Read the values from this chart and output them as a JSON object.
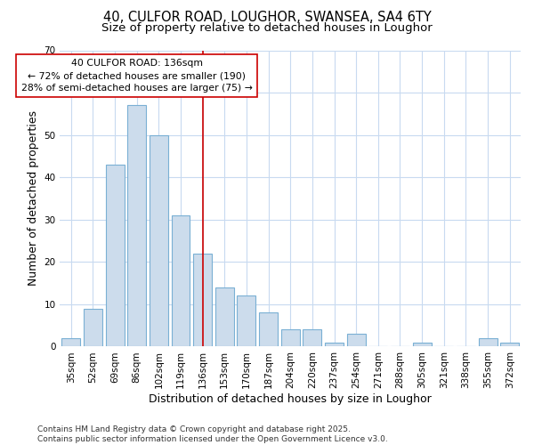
{
  "title_line1": "40, CULFOR ROAD, LOUGHOR, SWANSEA, SA4 6TY",
  "title_line2": "Size of property relative to detached houses in Loughor",
  "xlabel": "Distribution of detached houses by size in Loughor",
  "ylabel": "Number of detached properties",
  "categories": [
    "35sqm",
    "52sqm",
    "69sqm",
    "86sqm",
    "102sqm",
    "119sqm",
    "136sqm",
    "153sqm",
    "170sqm",
    "187sqm",
    "204sqm",
    "220sqm",
    "237sqm",
    "254sqm",
    "271sqm",
    "288sqm",
    "305sqm",
    "321sqm",
    "338sqm",
    "355sqm",
    "372sqm"
  ],
  "values": [
    2,
    9,
    43,
    57,
    50,
    31,
    22,
    14,
    12,
    8,
    4,
    4,
    1,
    3,
    0,
    0,
    1,
    0,
    0,
    2,
    1
  ],
  "bar_color": "#ccdcec",
  "bar_edge_color": "#7ab0d4",
  "highlight_index": 6,
  "highlight_line_color": "#cc0000",
  "annotation_line1": "40 CULFOR ROAD: 136sqm",
  "annotation_line2": "← 72% of detached houses are smaller (190)",
  "annotation_line3": "28% of semi-detached houses are larger (75) →",
  "ylim": [
    0,
    70
  ],
  "yticks": [
    0,
    10,
    20,
    30,
    40,
    50,
    60,
    70
  ],
  "background_color": "#ffffff",
  "plot_bg_color": "#ffffff",
  "grid_color": "#c8daf0",
  "footer_text": "Contains HM Land Registry data © Crown copyright and database right 2025.\nContains public sector information licensed under the Open Government Licence v3.0.",
  "title_fontsize": 10.5,
  "subtitle_fontsize": 9.5,
  "axis_label_fontsize": 9,
  "tick_fontsize": 7.5,
  "annotation_fontsize": 7.8,
  "footer_fontsize": 6.5
}
